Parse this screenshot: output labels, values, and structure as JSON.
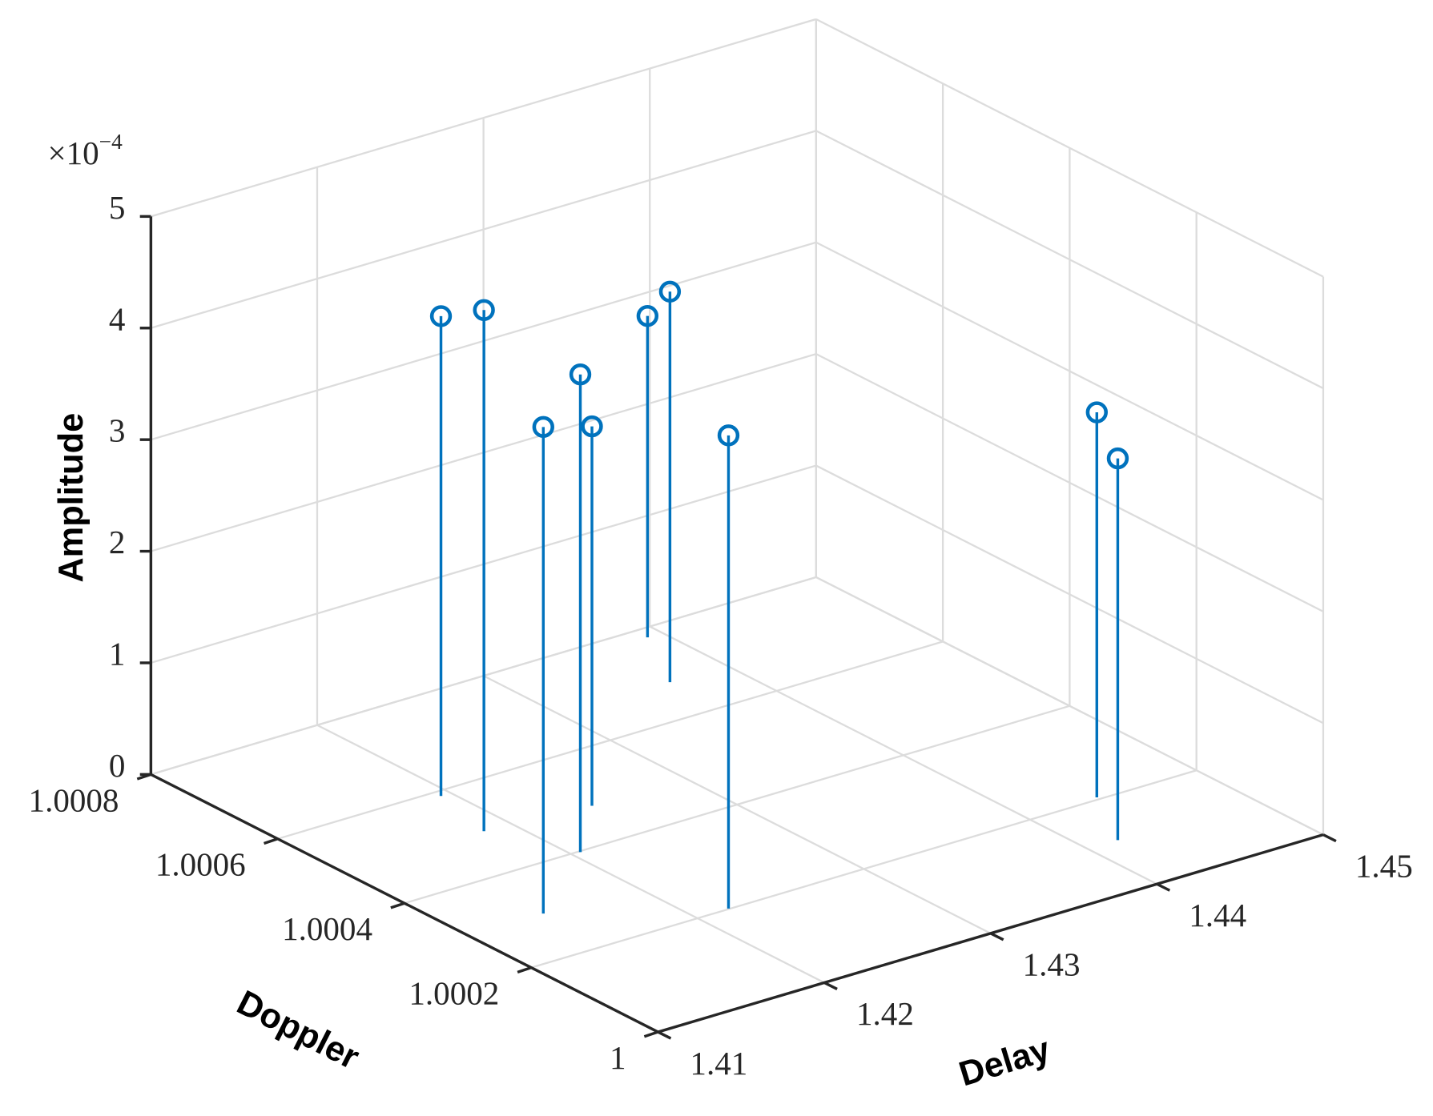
{
  "chart_data": {
    "type": "stem3",
    "x_label": "Delay",
    "y_label": "Doppler",
    "z_label": "Amplitude",
    "z_multiplier": {
      "base": "×10",
      "exp": "−4"
    },
    "x": [
      1.4194,
      1.4184,
      1.4145,
      1.4205,
      1.4244,
      1.4391,
      1.4366,
      1.4219,
      1.4442,
      1.4418
    ],
    "y": [
      1.000589,
      1.000495,
      1.000299,
      1.000398,
      1.000482,
      1.00078,
      1.000679,
      1.000201,
      1.000205,
      1.000109
    ],
    "z": [
      0.00043,
      0.000467,
      0.000436,
      0.000428,
      0.00034,
      0.000288,
      0.00035,
      0.000424,
      0.000345,
      0.000342
    ],
    "color": "#0072bd",
    "xlim": [
      1.41,
      1.45
    ],
    "xticks": [
      1.41,
      1.42,
      1.43,
      1.44,
      1.45
    ],
    "ylim": [
      1,
      1.0008
    ],
    "yticks": [
      1,
      1.0002,
      1.0004,
      1.0006,
      1.0008
    ],
    "zlim": [
      0,
      0.0005
    ],
    "zticks": [
      0,
      {
        "value": 0.0001,
        "label": "1"
      },
      {
        "value": 0.0002,
        "label": "2"
      },
      {
        "value": 0.0003,
        "label": "3"
      },
      {
        "value": 0.0004,
        "label": "4"
      },
      {
        "value": 0.0005,
        "label": "5"
      }
    ],
    "grid": true
  }
}
